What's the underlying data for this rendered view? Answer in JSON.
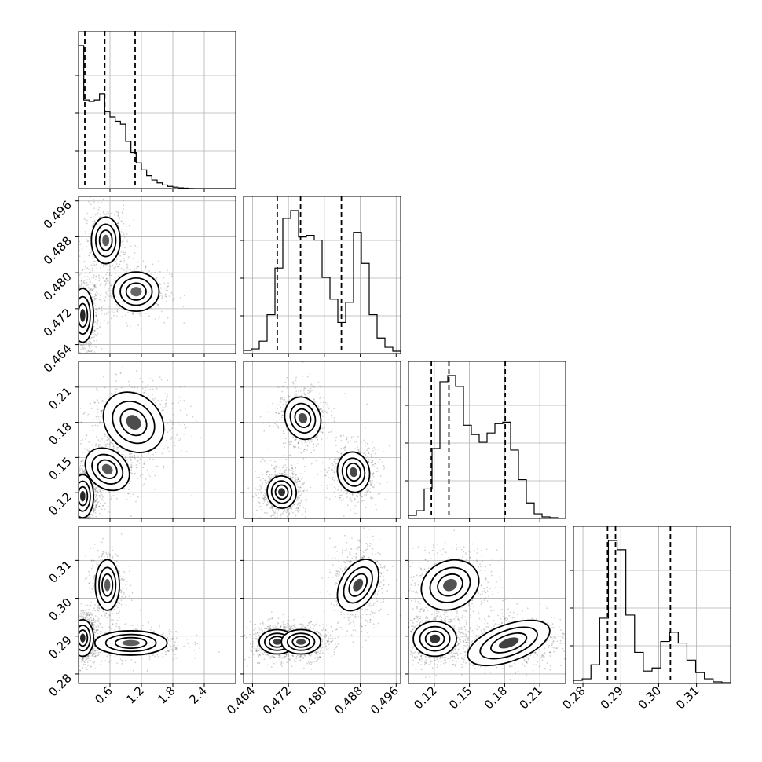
{
  "chart_data": {
    "type": "corner",
    "grid": true,
    "params": [
      {
        "range": [
          0.0,
          3.0
        ],
        "ticks": [
          0.6,
          1.2,
          1.8,
          2.4
        ],
        "tick_labels": [
          "0.6",
          "1.2",
          "1.8",
          "2.4"
        ]
      },
      {
        "range": [
          0.462,
          0.497
        ],
        "ticks": [
          0.464,
          0.472,
          0.48,
          0.488,
          0.496
        ],
        "tick_labels": [
          "0.464",
          "0.472",
          "0.480",
          "0.488",
          "0.496"
        ]
      },
      {
        "range": [
          0.098,
          0.232
        ],
        "ticks": [
          0.12,
          0.15,
          0.18,
          0.21
        ],
        "tick_labels": [
          "0.12",
          "0.15",
          "0.18",
          "0.21"
        ]
      },
      {
        "range": [
          0.2775,
          0.319
        ],
        "ticks": [
          0.28,
          0.29,
          0.3,
          0.31
        ],
        "tick_labels": [
          "0.28",
          "0.29",
          "0.30",
          "0.31"
        ]
      }
    ],
    "histograms": [
      {
        "quantiles": [
          0.12,
          0.5,
          1.08
        ],
        "bins": [
          0.0,
          3.0
        ],
        "counts": [
          1.0,
          0.62,
          0.61,
          0.62,
          0.66,
          0.54,
          0.5,
          0.47,
          0.45,
          0.33,
          0.25,
          0.18,
          0.13,
          0.09,
          0.06,
          0.04,
          0.025,
          0.015,
          0.01,
          0.005,
          0.003,
          0.001,
          0,
          0,
          0,
          0,
          0,
          0,
          0,
          0
        ]
      },
      {
        "quantiles": [
          0.4695,
          0.4747,
          0.4838
        ],
        "bins": [
          0.462,
          0.497
        ],
        "counts": [
          0.02,
          0.03,
          0.08,
          0.25,
          0.55,
          0.87,
          0.92,
          0.75,
          0.76,
          0.73,
          0.49,
          0.35,
          0.2,
          0.33,
          0.78,
          0.58,
          0.25,
          0.1,
          0.04,
          0.015
        ]
      },
      {
        "quantiles": [
          0.1175,
          0.1325,
          0.1805
        ],
        "bins": [
          0.098,
          0.232
        ],
        "counts": [
          0.02,
          0.05,
          0.19,
          0.45,
          0.88,
          0.92,
          0.85,
          0.6,
          0.54,
          0.49,
          0.55,
          0.61,
          0.62,
          0.44,
          0.25,
          0.1,
          0.03,
          0.01,
          0.005,
          0
        ]
      },
      {
        "quantiles": [
          0.2865,
          0.2886,
          0.3031
        ],
        "bins": [
          0.2775,
          0.319
        ],
        "counts": [
          0.02,
          0.03,
          0.12,
          0.42,
          0.92,
          0.86,
          0.44,
          0.2,
          0.08,
          0.1,
          0.27,
          0.33,
          0.26,
          0.15,
          0.07,
          0.03,
          0.01,
          0.005
        ]
      }
    ],
    "scatter_panels": [
      {
        "row": 1,
        "col": 0,
        "clusters": [
          {
            "cx": 0.08,
            "cy": 0.4705,
            "rx": 0.18,
            "ry": 0.0052,
            "rot": 0,
            "w": 1.0
          },
          {
            "cx": 0.52,
            "cy": 0.4872,
            "rx": 0.24,
            "ry": 0.0045,
            "rot": 0,
            "w": 0.55
          },
          {
            "cx": 1.1,
            "cy": 0.4758,
            "rx": 0.38,
            "ry": 0.0038,
            "rot": 0,
            "w": 0.5
          }
        ]
      },
      {
        "row": 2,
        "col": 0,
        "clusters": [
          {
            "cx": 0.08,
            "cy": 0.117,
            "rx": 0.18,
            "ry": 0.016,
            "rot": 0,
            "w": 1.0
          },
          {
            "cx": 0.55,
            "cy": 0.14,
            "rx": 0.4,
            "ry": 0.014,
            "rot": -40,
            "w": 0.6
          },
          {
            "cx": 1.05,
            "cy": 0.18,
            "rx": 0.55,
            "ry": 0.02,
            "rot": -45,
            "w": 0.7
          }
        ]
      },
      {
        "row": 2,
        "col": 1,
        "clusters": [
          {
            "cx": 0.4705,
            "cy": 0.1205,
            "rx": 0.0028,
            "ry": 0.012,
            "rot": 10,
            "w": 0.9
          },
          {
            "cx": 0.4752,
            "cy": 0.1835,
            "rx": 0.0034,
            "ry": 0.016,
            "rot": 20,
            "w": 0.7
          },
          {
            "cx": 0.4865,
            "cy": 0.1375,
            "rx": 0.0031,
            "ry": 0.015,
            "rot": 10,
            "w": 0.75
          }
        ]
      },
      {
        "row": 3,
        "col": 0,
        "clusters": [
          {
            "cx": 0.08,
            "cy": 0.2895,
            "rx": 0.18,
            "ry": 0.0042,
            "rot": 0,
            "w": 1.0
          },
          {
            "cx": 0.55,
            "cy": 0.3035,
            "rx": 0.2,
            "ry": 0.0058,
            "rot": 0,
            "w": 0.55
          },
          {
            "cx": 1.0,
            "cy": 0.2882,
            "rx": 0.6,
            "ry": 0.0028,
            "rot": 0,
            "w": 0.55
          }
        ]
      },
      {
        "row": 3,
        "col": 1,
        "clusters": [
          {
            "cx": 0.4695,
            "cy": 0.2885,
            "rx": 0.0035,
            "ry": 0.0028,
            "rot": 0,
            "w": 0.8
          },
          {
            "cx": 0.4748,
            "cy": 0.2885,
            "rx": 0.0038,
            "ry": 0.0028,
            "rot": 0,
            "w": 0.75
          },
          {
            "cx": 0.4875,
            "cy": 0.3035,
            "rx": 0.0034,
            "ry": 0.0064,
            "rot": -30,
            "w": 0.75
          }
        ]
      },
      {
        "row": 3,
        "col": 2,
        "clusters": [
          {
            "cx": 0.1205,
            "cy": 0.2893,
            "rx": 0.016,
            "ry": 0.004,
            "rot": 0,
            "w": 0.9
          },
          {
            "cx": 0.1335,
            "cy": 0.3035,
            "rx": 0.022,
            "ry": 0.0055,
            "rot": 25,
            "w": 0.65
          },
          {
            "cx": 0.1835,
            "cy": 0.2882,
            "rx": 0.032,
            "ry": 0.0042,
            "rot": 20,
            "w": 0.8
          }
        ]
      }
    ]
  }
}
